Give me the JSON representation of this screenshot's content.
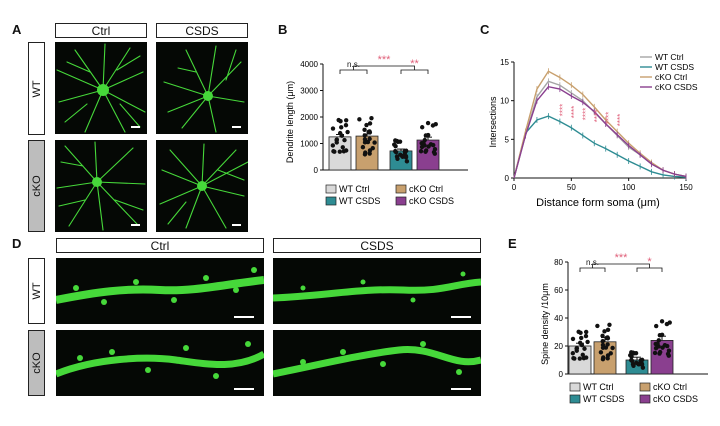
{
  "panels": {
    "A": "A",
    "B": "B",
    "C": "C",
    "D": "D",
    "E": "E"
  },
  "panelA": {
    "col_headers": [
      "Ctrl",
      "CSDS"
    ],
    "row_headers": [
      "WT",
      "cKO"
    ]
  },
  "panelD": {
    "col_headers": [
      "Ctrl",
      "CSDS"
    ],
    "row_headers": [
      "WT",
      "cKO"
    ]
  },
  "colors": {
    "wt_ctrl": "#d9d9d9",
    "wt_csds": "#2e8c93",
    "cko_ctrl": "#c8a06e",
    "cko_csds": "#8a3f8f",
    "sig": "#e0607a",
    "cell": "#46d83a"
  },
  "chart_data": [
    {
      "type": "bar",
      "panel": "B",
      "ylabel": "Dendrite length (μm)",
      "ylim": [
        0,
        4000
      ],
      "yticks": [
        "0",
        "1000",
        "2000",
        "3000",
        "4000"
      ],
      "categories": [
        "WT Ctrl",
        "cKO Ctrl",
        "WT CSDS",
        "cKO CSDS"
      ],
      "values": [
        1250,
        1280,
        720,
        1130
      ],
      "errors": [
        90,
        80,
        70,
        110
      ],
      "sig": [
        {
          "label": "n.s.",
          "pair": [
            0,
            1
          ]
        },
        {
          "label": "***",
          "pair": [
            0.5,
            2.5
          ]
        },
        {
          "label": "**",
          "pair": [
            2,
            3
          ]
        }
      ],
      "legend": [
        "WT Ctrl",
        "cKO Ctrl",
        "WT CSDS",
        "cKO CSDS"
      ]
    },
    {
      "type": "line",
      "panel": "C",
      "xlabel": "Distance form soma (μm)",
      "ylabel": "Intersections",
      "xlim": [
        0,
        150
      ],
      "ylim": [
        0,
        15
      ],
      "xticks": [
        "0",
        "50",
        "100",
        "150"
      ],
      "yticks": [
        "0",
        "5",
        "10",
        "15"
      ],
      "x": [
        10,
        20,
        30,
        40,
        50,
        60,
        70,
        80,
        90,
        100,
        110,
        120,
        130,
        140,
        150
      ],
      "series": [
        {
          "name": "WT Ctrl",
          "values": [
            5.5,
            10.5,
            12.5,
            12.0,
            11.0,
            10.0,
            8.5,
            7.0,
            5.5,
            4.0,
            3.0,
            1.8,
            1.0,
            0.5,
            0.2
          ]
        },
        {
          "name": "WT CSDS",
          "values": [
            5.8,
            7.5,
            8.0,
            7.3,
            6.5,
            5.5,
            4.5,
            3.8,
            3.0,
            2.2,
            1.5,
            0.8,
            0.4,
            0.2,
            0.1
          ]
        },
        {
          "name": "cKO Ctrl",
          "values": [
            6.0,
            11.5,
            13.8,
            13.0,
            12.0,
            10.8,
            9.2,
            7.5,
            6.0,
            4.5,
            3.2,
            2.0,
            1.0,
            0.5,
            0.2
          ]
        },
        {
          "name": "cKO CSDS",
          "values": [
            5.5,
            10.0,
            11.8,
            11.5,
            10.6,
            9.8,
            8.6,
            7.0,
            5.6,
            4.2,
            3.0,
            1.8,
            1.0,
            0.5,
            0.2
          ]
        }
      ],
      "annotation": "****"
    },
    {
      "type": "bar",
      "panel": "E",
      "ylabel": "Spine density /10μm",
      "ylim": [
        0,
        80
      ],
      "yticks": [
        "0",
        "20",
        "40",
        "60",
        "80"
      ],
      "categories": [
        "WT Ctrl",
        "cKO Ctrl",
        "WT CSDS",
        "cKO CSDS"
      ],
      "values": [
        20,
        23,
        10,
        24
      ],
      "errors": [
        2,
        3,
        2,
        3
      ],
      "sig": [
        {
          "label": "n.s.",
          "pair": [
            0,
            1
          ]
        },
        {
          "label": "***",
          "pair": [
            0.5,
            2.5
          ]
        },
        {
          "label": "*",
          "pair": [
            2,
            3
          ]
        }
      ],
      "legend": [
        "WT Ctrl",
        "cKO Ctrl",
        "WT CSDS",
        "cKO CSDS"
      ]
    }
  ]
}
